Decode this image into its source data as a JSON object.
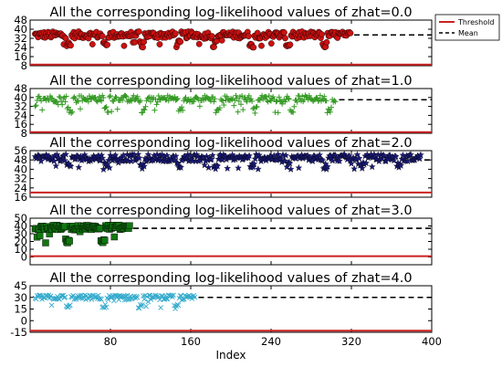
{
  "chart_data": [
    {
      "type": "scatter",
      "title": "All the corresponding log-likelihood values of zhat=0.0",
      "marker": "circle",
      "color": "#cc1111",
      "x": [
        5,
        320
      ],
      "points": 320,
      "y_level": 35,
      "y_dip": 24,
      "ylim": [
        8,
        48
      ],
      "yticks": [
        "48",
        "40",
        "32",
        "24",
        "16",
        "8"
      ],
      "threshold": 9,
      "mean": 35
    },
    {
      "type": "scatter",
      "title": "All the corresponding log-likelihood values of zhat=1.0",
      "marker": "plus",
      "color": "#339922",
      "x": [
        5,
        305
      ],
      "points": 300,
      "y_level": 39,
      "y_dip": 26,
      "ylim": [
        8,
        48
      ],
      "yticks": [
        "48",
        "40",
        "32",
        "24",
        "16",
        "8"
      ],
      "threshold": 9,
      "mean": 38
    },
    {
      "type": "scatter",
      "title": "All the corresponding log-likelihood values of zhat=2.0",
      "marker": "star",
      "color": "#1a1a7a",
      "x": [
        5,
        390
      ],
      "points": 390,
      "y_level": 50,
      "y_dip": 40,
      "ylim": [
        16,
        56
      ],
      "yticks": [
        "56",
        "48",
        "40",
        "32",
        "24",
        "16"
      ],
      "threshold": 20,
      "mean": 48
    },
    {
      "type": "scatter",
      "title": "All the corresponding log-likelihood values of zhat=3.0",
      "marker": "square",
      "color": "#117711",
      "x": [
        5,
        100
      ],
      "points": 100,
      "y_level": 38,
      "y_dip": 18,
      "ylim": [
        -10,
        50
      ],
      "yticks": [
        "50",
        "40",
        "30",
        "20",
        "10",
        "0"
      ],
      "threshold": 1,
      "mean": 37
    },
    {
      "type": "scatter",
      "title": "All the corresponding log-likelihood values of zhat=4.0",
      "marker": "x",
      "color": "#33aacc",
      "x": [
        5,
        165
      ],
      "points": 165,
      "y_level": 30,
      "y_dip": 15,
      "ylim": [
        -15,
        45
      ],
      "yticks": [
        "45",
        "30",
        "15",
        "0",
        "-15"
      ],
      "threshold": -13,
      "mean": 30
    }
  ],
  "xaxis": {
    "label": "Index",
    "xlim": [
      0,
      400
    ],
    "ticks": [
      "80",
      "160",
      "240",
      "320",
      "400"
    ]
  },
  "legend": {
    "position": "top-right",
    "entries": [
      "Threshold",
      "Mean"
    ],
    "colors": [
      "#cc2222",
      "#000000"
    ]
  }
}
